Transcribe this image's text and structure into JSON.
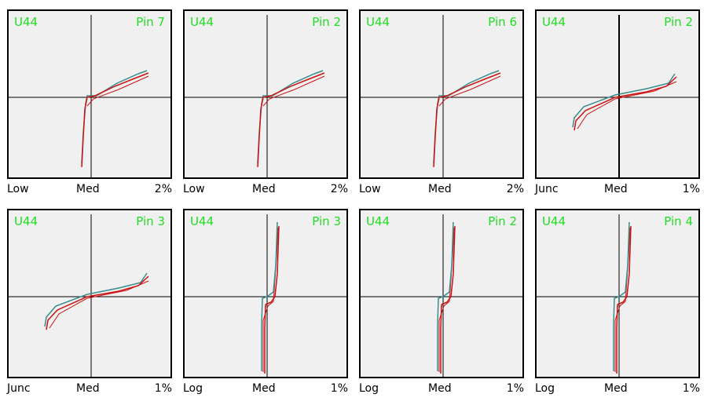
{
  "colors": {
    "plot_bg": "#f0f0f0",
    "label_green": "#22dd22",
    "trace_red": "#cc1111",
    "trace_teal": "#3a8c8c"
  },
  "panels": [
    {
      "chip": "U44",
      "pin": "Pin 7",
      "range": "Low",
      "mode": "Med",
      "percent": "2%",
      "curve": "low"
    },
    {
      "chip": "U44",
      "pin": "Pin 2",
      "range": "Low",
      "mode": "Med",
      "percent": "2%",
      "curve": "low"
    },
    {
      "chip": "U44",
      "pin": "Pin 6",
      "range": "Low",
      "mode": "Med",
      "percent": "2%",
      "curve": "low"
    },
    {
      "chip": "U44",
      "pin": "Pin 2",
      "range": "Junc",
      "mode": "Med",
      "percent": "1%",
      "curve": "junc"
    },
    {
      "chip": "U44",
      "pin": "Pin 3",
      "range": "Junc",
      "mode": "Med",
      "percent": "1%",
      "curve": "junc"
    },
    {
      "chip": "U44",
      "pin": "Pin 3",
      "range": "Log",
      "mode": "Med",
      "percent": "1%",
      "curve": "log"
    },
    {
      "chip": "U44",
      "pin": "Pin 2",
      "range": "Log",
      "mode": "Med",
      "percent": "1%",
      "curve": "log"
    },
    {
      "chip": "U44",
      "pin": "Pin 4",
      "range": "Log",
      "mode": "Med",
      "percent": "1%",
      "curve": "log"
    }
  ]
}
